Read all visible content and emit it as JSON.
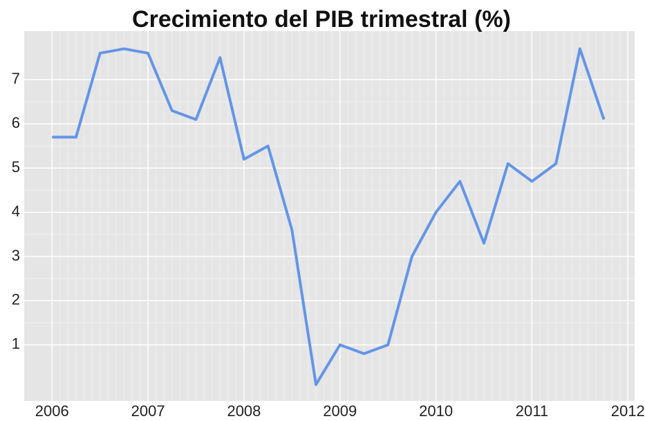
{
  "chart_data": {
    "type": "line",
    "title": "Crecimiento del PIB trimestral (%)",
    "x": [
      2006,
      2006.25,
      2006.5,
      2006.75,
      2007,
      2007.25,
      2007.5,
      2007.75,
      2008,
      2008.25,
      2008.5,
      2008.75,
      2009,
      2009.25,
      2009.5,
      2009.75,
      2010,
      2010.25,
      2010.5,
      2010.75,
      2011,
      2011.25,
      2011.5,
      2011.75
    ],
    "series": [
      {
        "color": "#6495e6",
        "values": [
          5.7,
          5.7,
          7.6,
          7.7,
          7.6,
          6.3,
          6.1,
          7.5,
          5.2,
          5.5,
          3.6,
          0.1,
          1.0,
          0.8,
          1.0,
          3.0,
          4.0,
          4.7,
          3.3,
          5.1,
          4.7,
          5.1,
          7.7,
          6.1
        ]
      }
    ],
    "xlim": [
      2005.71,
      2012.07
    ],
    "xticks": [
      2006,
      2007,
      2008,
      2009,
      2010,
      2011,
      2012
    ],
    "ylim": [
      -0.27,
      8.1
    ],
    "yticks": [
      1,
      2,
      3,
      4,
      5,
      6,
      7
    ],
    "grid": true
  }
}
